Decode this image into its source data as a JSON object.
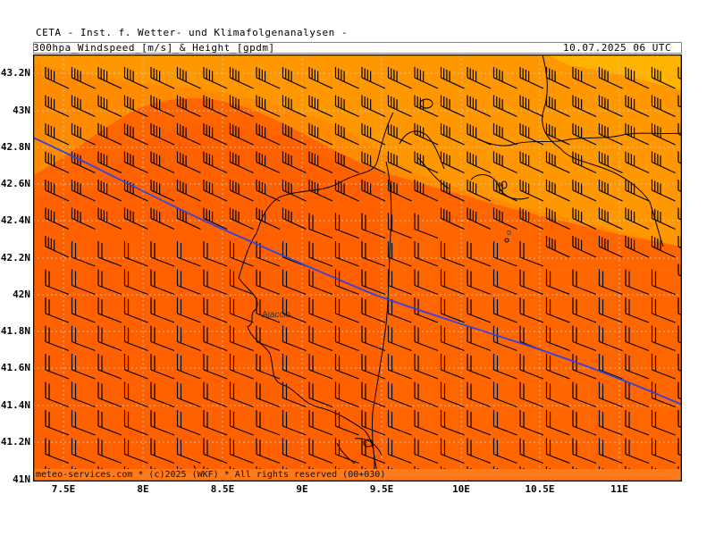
{
  "header": {
    "title": "CETA - Inst. f. Wetter- und Klimafolgenanalysen -",
    "product": "300hpa_Windspeed_[m/s]_&_Height_[gpdm]",
    "datetime": "10.07.2025 06 UTC"
  },
  "footer": "meteo-services.com * (c)2025 (WKF) * All rights reserved (00+030)",
  "place_label": "Ajaccio",
  "place_label_2": "o",
  "axes": {
    "lat_labels": [
      "43.2N",
      "43N",
      "42.8N",
      "42.6N",
      "42.4N",
      "42.2N",
      "42N",
      "41.8N",
      "41.6N",
      "41.4N",
      "41.2N",
      "41N"
    ],
    "lon_labels": [
      "7.5E",
      "8E",
      "8.5E",
      "9E",
      "9.5E",
      "10E",
      "10.5E",
      "11E"
    ]
  },
  "colors": {
    "band_deep": "#ff6600",
    "band_mid": "#ff8c00",
    "band_light": "#ffa500",
    "band_palest": "#ffb300",
    "contour": "#3344dd",
    "coast": "#000000",
    "grid": "#c8c8c8"
  }
}
